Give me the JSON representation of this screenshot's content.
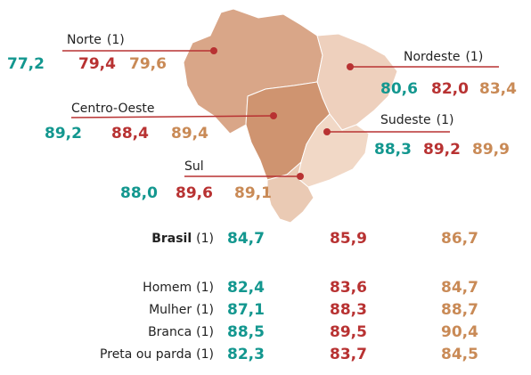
{
  "colors": [
    "#13978f",
    "#b83232",
    "#c98a56"
  ],
  "regions": [
    {
      "name": "Norte",
      "note": "(1)",
      "values": [
        "77,2",
        "79,4",
        "79,6"
      ]
    },
    {
      "name": "Nordeste",
      "note": "(1)",
      "values": [
        "80,6",
        "82,0",
        "83,4"
      ]
    },
    {
      "name": "Centro-Oeste",
      "values": [
        "89,2",
        "88,4",
        "89,4"
      ]
    },
    {
      "name": "Sudeste",
      "note": "(1)",
      "values": [
        "88,3",
        "89,2",
        "89,9"
      ]
    },
    {
      "name": "Sul",
      "values": [
        "88,0",
        "89,6",
        "89,1"
      ]
    }
  ],
  "rows": [
    {
      "label": "Brasil",
      "note": "(1)",
      "values": [
        "84,7",
        "85,9",
        "86,7"
      ]
    },
    {
      "label": "Homem",
      "note": "(1)",
      "values": [
        "82,4",
        "83,6",
        "84,7"
      ]
    },
    {
      "label": "Mulher",
      "note": "(1)",
      "values": [
        "87,1",
        "88,3",
        "88,7"
      ]
    },
    {
      "label": "Branca",
      "note": "(1)",
      "values": [
        "88,5",
        "89,5",
        "90,4"
      ]
    },
    {
      "label": "Preta ou parda",
      "note": "(1)",
      "values": [
        "82,3",
        "83,7",
        "84,5"
      ]
    }
  ]
}
